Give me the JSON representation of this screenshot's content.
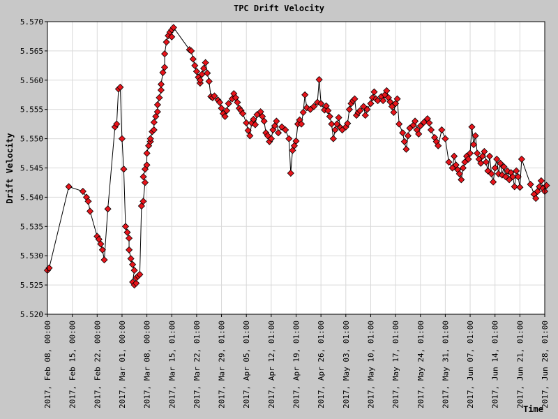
{
  "chart_data": {
    "type": "line",
    "title": "TPC Drift Velocity",
    "xlabel": "Time",
    "ylabel": "Drift Velocity",
    "ylim": [
      5.52,
      5.57
    ],
    "y_ticks": [
      "5.520",
      "5.525",
      "5.530",
      "5.535",
      "5.540",
      "5.545",
      "5.550",
      "5.555",
      "5.560",
      "5.565",
      "5.570"
    ],
    "xlim": [
      "2017-02-08",
      "2017-06-28"
    ],
    "x_ticks": [
      {
        "x": "2017-02-08",
        "label": "2017, Feb 08, 00:00"
      },
      {
        "x": "2017-02-15",
        "label": "2017, Feb 15, 00:00"
      },
      {
        "x": "2017-02-22",
        "label": "2017, Feb 22, 00:00"
      },
      {
        "x": "2017-03-01",
        "label": "2017, Mar 01, 00:00"
      },
      {
        "x": "2017-03-08",
        "label": "2017, Mar 08, 00:00"
      },
      {
        "x": "2017-03-15",
        "label": "2017, Mar 15, 01:00"
      },
      {
        "x": "2017-03-22",
        "label": "2017, Mar 22, 01:00"
      },
      {
        "x": "2017-03-29",
        "label": "2017, Mar 29, 01:00"
      },
      {
        "x": "2017-04-05",
        "label": "2017, Apr 05, 01:00"
      },
      {
        "x": "2017-04-12",
        "label": "2017, Apr 12, 01:00"
      },
      {
        "x": "2017-04-19",
        "label": "2017, Apr 19, 01:00"
      },
      {
        "x": "2017-04-26",
        "label": "2017, Apr 26, 01:00"
      },
      {
        "x": "2017-05-03",
        "label": "2017, May 03, 01:00"
      },
      {
        "x": "2017-05-10",
        "label": "2017, May 10, 01:00"
      },
      {
        "x": "2017-05-17",
        "label": "2017, May 17, 01:00"
      },
      {
        "x": "2017-05-24",
        "label": "2017, May 24, 01:00"
      },
      {
        "x": "2017-05-31",
        "label": "2017, May 31, 01:00"
      },
      {
        "x": "2017-06-07",
        "label": "2017, Jun 07, 01:00"
      },
      {
        "x": "2017-06-14",
        "label": "2017, Jun 14, 01:00"
      },
      {
        "x": "2017-06-21",
        "label": "2017, Jun 21, 01:00"
      },
      {
        "x": "2017-06-28",
        "label": "2017, Jun 28, 01:00"
      }
    ],
    "grid": true,
    "marker": "diamond",
    "marker_color": "#e8141b",
    "line_color": "#000000",
    "background": "#c8c8c8",
    "plot_background": "#ffffff",
    "series": [
      {
        "points": [
          [
            "2017-02-08",
            5.5275
          ],
          [
            "2017-02-08",
            5.5279
          ],
          [
            "2017-02-14",
            5.5418
          ],
          [
            "2017-02-18",
            5.541
          ],
          [
            "2017-02-19",
            5.54
          ],
          [
            "2017-02-19",
            5.5393
          ],
          [
            "2017-02-20",
            5.5376
          ],
          [
            "2017-02-22",
            5.5333
          ],
          [
            "2017-02-22",
            5.5328
          ],
          [
            "2017-02-23",
            5.532
          ],
          [
            "2017-02-23",
            5.531
          ],
          [
            "2017-02-24",
            5.5293
          ],
          [
            "2017-02-25",
            5.538
          ],
          [
            "2017-02-27",
            5.552
          ],
          [
            "2017-02-27",
            5.5525
          ],
          [
            "2017-02-28",
            5.5585
          ],
          [
            "2017-02-28",
            5.5588
          ],
          [
            "2017-03-01",
            5.55
          ],
          [
            "2017-03-01",
            5.5448
          ],
          [
            "2017-03-02",
            5.535
          ],
          [
            "2017-03-02",
            5.534
          ],
          [
            "2017-03-02",
            5.533
          ],
          [
            "2017-03-03",
            5.531
          ],
          [
            "2017-03-03",
            5.5295
          ],
          [
            "2017-03-03",
            5.5285
          ],
          [
            "2017-03-03",
            5.5275
          ],
          [
            "2017-03-04",
            5.5255
          ],
          [
            "2017-03-04",
            5.525
          ],
          [
            "2017-03-04",
            5.5253
          ],
          [
            "2017-03-05",
            5.5262
          ],
          [
            "2017-03-05",
            5.5265
          ],
          [
            "2017-03-06",
            5.5268
          ],
          [
            "2017-03-06",
            5.5385
          ],
          [
            "2017-03-06",
            5.5393
          ],
          [
            "2017-03-06",
            5.5425
          ],
          [
            "2017-03-07",
            5.5435
          ],
          [
            "2017-03-07",
            5.5448
          ],
          [
            "2017-03-07",
            5.5455
          ],
          [
            "2017-03-08",
            5.5475
          ],
          [
            "2017-03-08",
            5.5488
          ],
          [
            "2017-03-08",
            5.5495
          ],
          [
            "2017-03-09",
            5.55
          ],
          [
            "2017-03-09",
            5.5512
          ],
          [
            "2017-03-09",
            5.5515
          ],
          [
            "2017-03-10",
            5.5528
          ],
          [
            "2017-03-10",
            5.5538
          ],
          [
            "2017-03-10",
            5.5546
          ],
          [
            "2017-03-11",
            5.5558
          ],
          [
            "2017-03-11",
            5.557
          ],
          [
            "2017-03-11",
            5.5583
          ],
          [
            "2017-03-12",
            5.5593
          ],
          [
            "2017-03-12",
            5.5613
          ],
          [
            "2017-03-12",
            5.5622
          ],
          [
            "2017-03-13",
            5.5645
          ],
          [
            "2017-03-13",
            5.5665
          ],
          [
            "2017-03-14",
            5.5676
          ],
          [
            "2017-03-14",
            5.5682
          ],
          [
            "2017-03-14",
            5.5674
          ],
          [
            "2017-03-15",
            5.5686
          ],
          [
            "2017-03-15",
            5.569
          ],
          [
            "2017-03-20",
            5.5652
          ],
          [
            "2017-03-20",
            5.565
          ],
          [
            "2017-03-21",
            5.5636
          ],
          [
            "2017-03-21",
            5.5625
          ],
          [
            "2017-03-22",
            5.5615
          ],
          [
            "2017-03-22",
            5.5605
          ],
          [
            "2017-03-22",
            5.5595
          ],
          [
            "2017-03-23",
            5.56
          ],
          [
            "2017-03-23",
            5.561
          ],
          [
            "2017-03-24",
            5.562
          ],
          [
            "2017-03-24",
            5.563
          ],
          [
            "2017-03-25",
            5.5612
          ],
          [
            "2017-03-25",
            5.5598
          ],
          [
            "2017-03-26",
            5.5572
          ],
          [
            "2017-03-26",
            5.557
          ],
          [
            "2017-03-27",
            5.5573
          ],
          [
            "2017-03-28",
            5.5566
          ],
          [
            "2017-03-28",
            5.5562
          ],
          [
            "2017-03-29",
            5.5552
          ],
          [
            "2017-03-29",
            5.5543
          ],
          [
            "2017-03-30",
            5.5538
          ],
          [
            "2017-03-30",
            5.5548
          ],
          [
            "2017-03-31",
            5.556
          ],
          [
            "2017-04-01",
            5.5568
          ],
          [
            "2017-04-01",
            5.5577
          ],
          [
            "2017-04-02",
            5.557
          ],
          [
            "2017-04-02",
            5.5562
          ],
          [
            "2017-04-03",
            5.5552
          ],
          [
            "2017-04-03",
            5.5548
          ],
          [
            "2017-04-04",
            5.5543
          ],
          [
            "2017-04-05",
            5.5527
          ],
          [
            "2017-04-05",
            5.5514
          ],
          [
            "2017-04-06",
            5.5505
          ],
          [
            "2017-04-06",
            5.5527
          ],
          [
            "2017-04-07",
            5.5533
          ],
          [
            "2017-04-07",
            5.5524
          ],
          [
            "2017-04-08",
            5.5541
          ],
          [
            "2017-04-09",
            5.5546
          ],
          [
            "2017-04-09",
            5.5538
          ],
          [
            "2017-04-10",
            5.553
          ],
          [
            "2017-04-10",
            5.551
          ],
          [
            "2017-04-11",
            5.5505
          ],
          [
            "2017-04-11",
            5.5495
          ],
          [
            "2017-04-12",
            5.55
          ],
          [
            "2017-04-12",
            5.5515
          ],
          [
            "2017-04-13",
            5.5522
          ],
          [
            "2017-04-13",
            5.553
          ],
          [
            "2017-04-14",
            5.551
          ],
          [
            "2017-04-15",
            5.552
          ],
          [
            "2017-04-16",
            5.5515
          ],
          [
            "2017-04-17",
            5.55
          ],
          [
            "2017-04-17",
            5.5441
          ],
          [
            "2017-04-18",
            5.548
          ],
          [
            "2017-04-18",
            5.5488
          ],
          [
            "2017-04-19",
            5.5496
          ],
          [
            "2017-04-19",
            5.5525
          ],
          [
            "2017-04-20",
            5.5532
          ],
          [
            "2017-04-20",
            5.5525
          ],
          [
            "2017-04-21",
            5.5545
          ],
          [
            "2017-04-21",
            5.5575
          ],
          [
            "2017-04-22",
            5.5553
          ],
          [
            "2017-04-23",
            5.555
          ],
          [
            "2017-04-24",
            5.5555
          ],
          [
            "2017-04-25",
            5.5562
          ],
          [
            "2017-04-25",
            5.5601
          ],
          [
            "2017-04-26",
            5.556
          ],
          [
            "2017-04-27",
            5.5549
          ],
          [
            "2017-04-27",
            5.5556
          ],
          [
            "2017-04-28",
            5.5548
          ],
          [
            "2017-04-28",
            5.5538
          ],
          [
            "2017-04-29",
            5.5525
          ],
          [
            "2017-04-29",
            5.55
          ],
          [
            "2017-04-30",
            5.5515
          ],
          [
            "2017-04-30",
            5.5525
          ],
          [
            "2017-05-01",
            5.5536
          ],
          [
            "2017-05-01",
            5.5519
          ],
          [
            "2017-05-02",
            5.5515
          ],
          [
            "2017-05-03",
            5.552
          ],
          [
            "2017-05-03",
            5.5526
          ],
          [
            "2017-05-04",
            5.555
          ],
          [
            "2017-05-04",
            5.556
          ],
          [
            "2017-05-05",
            5.5565
          ],
          [
            "2017-05-05",
            5.5568
          ],
          [
            "2017-05-06",
            5.554
          ],
          [
            "2017-05-06",
            5.5545
          ],
          [
            "2017-05-07",
            5.5548
          ],
          [
            "2017-05-08",
            5.5555
          ],
          [
            "2017-05-08",
            5.554
          ],
          [
            "2017-05-09",
            5.555
          ],
          [
            "2017-05-10",
            5.556
          ],
          [
            "2017-05-10",
            5.557
          ],
          [
            "2017-05-11",
            5.558
          ],
          [
            "2017-05-11",
            5.5568
          ],
          [
            "2017-05-12",
            5.5565
          ],
          [
            "2017-05-13",
            5.5572
          ],
          [
            "2017-05-13",
            5.5565
          ],
          [
            "2017-05-14",
            5.5575
          ],
          [
            "2017-05-14",
            5.5582
          ],
          [
            "2017-05-15",
            5.557
          ],
          [
            "2017-05-15",
            5.5563
          ],
          [
            "2017-05-16",
            5.5555
          ],
          [
            "2017-05-16",
            5.5545
          ],
          [
            "2017-05-17",
            5.556
          ],
          [
            "2017-05-17",
            5.5568
          ],
          [
            "2017-05-18",
            5.5525
          ],
          [
            "2017-05-19",
            5.551
          ],
          [
            "2017-05-19",
            5.5495
          ],
          [
            "2017-05-20",
            5.5482
          ],
          [
            "2017-05-20",
            5.5505
          ],
          [
            "2017-05-21",
            5.5518
          ],
          [
            "2017-05-22",
            5.5523
          ],
          [
            "2017-05-22",
            5.553
          ],
          [
            "2017-05-23",
            5.5515
          ],
          [
            "2017-05-23",
            5.5508
          ],
          [
            "2017-05-24",
            5.5522
          ],
          [
            "2017-05-25",
            5.5528
          ],
          [
            "2017-05-26",
            5.5534
          ],
          [
            "2017-05-26",
            5.5527
          ],
          [
            "2017-05-27",
            5.5515
          ],
          [
            "2017-05-28",
            5.5502
          ],
          [
            "2017-05-28",
            5.5495
          ],
          [
            "2017-05-29",
            5.5488
          ],
          [
            "2017-05-30",
            5.5515
          ],
          [
            "2017-05-31",
            5.55
          ],
          [
            "2017-06-01",
            5.546
          ],
          [
            "2017-06-02",
            5.545
          ],
          [
            "2017-06-02",
            5.547
          ],
          [
            "2017-06-03",
            5.5455
          ],
          [
            "2017-06-03",
            5.5447
          ],
          [
            "2017-06-04",
            5.544
          ],
          [
            "2017-06-04",
            5.543
          ],
          [
            "2017-06-05",
            5.545
          ],
          [
            "2017-06-05",
            5.546
          ],
          [
            "2017-06-06",
            5.547
          ],
          [
            "2017-06-06",
            5.5465
          ],
          [
            "2017-06-07",
            5.5475
          ],
          [
            "2017-06-07",
            5.552
          ],
          [
            "2017-06-08",
            5.549
          ],
          [
            "2017-06-08",
            5.5505
          ],
          [
            "2017-06-09",
            5.5475
          ],
          [
            "2017-06-09",
            5.5465
          ],
          [
            "2017-06-10",
            5.5458
          ],
          [
            "2017-06-10",
            5.547
          ],
          [
            "2017-06-11",
            5.5478
          ],
          [
            "2017-06-11",
            5.546
          ],
          [
            "2017-06-12",
            5.5445
          ],
          [
            "2017-06-12",
            5.547
          ],
          [
            "2017-06-13",
            5.544
          ],
          [
            "2017-06-13",
            5.5426
          ],
          [
            "2017-06-14",
            5.545
          ],
          [
            "2017-06-14",
            5.5465
          ],
          [
            "2017-06-15",
            5.544
          ],
          [
            "2017-06-15",
            5.5458
          ],
          [
            "2017-06-16",
            5.5438
          ],
          [
            "2017-06-16",
            5.5452
          ],
          [
            "2017-06-17",
            5.5435
          ],
          [
            "2017-06-17",
            5.5445
          ],
          [
            "2017-06-18",
            5.543
          ],
          [
            "2017-06-18",
            5.5442
          ],
          [
            "2017-06-19",
            5.5435
          ],
          [
            "2017-06-19",
            5.5418
          ],
          [
            "2017-06-20",
            5.5445
          ],
          [
            "2017-06-20",
            5.5435
          ],
          [
            "2017-06-21",
            5.5417
          ],
          [
            "2017-06-21",
            5.5465
          ],
          [
            "2017-06-24",
            5.5422
          ],
          [
            "2017-06-25",
            5.5405
          ],
          [
            "2017-06-25",
            5.5398
          ],
          [
            "2017-06-26",
            5.541
          ],
          [
            "2017-06-26",
            5.5418
          ],
          [
            "2017-06-27",
            5.5428
          ],
          [
            "2017-06-27",
            5.5415
          ],
          [
            "2017-06-28",
            5.541
          ],
          [
            "2017-06-28",
            5.542
          ]
        ]
      }
    ]
  }
}
